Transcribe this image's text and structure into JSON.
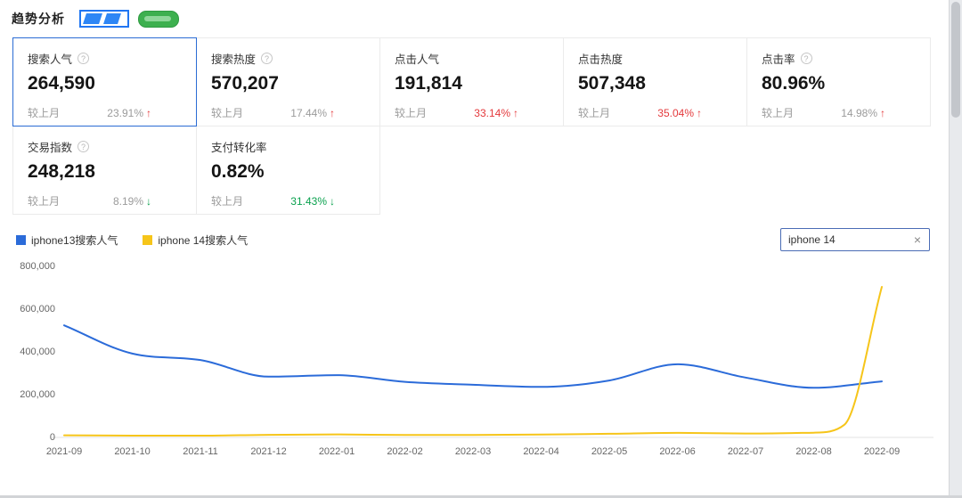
{
  "header": {
    "title": "趋势分析"
  },
  "icons": {
    "info": "?",
    "clear": "×"
  },
  "metrics": [
    {
      "label": "搜索人气",
      "has_info": true,
      "value": "264,590",
      "compare_label": "较上月",
      "pct": "23.91%",
      "arrow": "↑",
      "pct_color": "#9b9b9b",
      "arrow_color": "#e4393c",
      "selected": true
    },
    {
      "label": "搜索热度",
      "has_info": true,
      "value": "570,207",
      "compare_label": "较上月",
      "pct": "17.44%",
      "arrow": "↑",
      "pct_color": "#9b9b9b",
      "arrow_color": "#e4393c",
      "selected": false
    },
    {
      "label": "点击人气",
      "has_info": false,
      "value": "191,814",
      "compare_label": "较上月",
      "pct": "33.14%",
      "arrow": "↑",
      "pct_color": "#e4393c",
      "arrow_color": "#e4393c",
      "selected": false
    },
    {
      "label": "点击热度",
      "has_info": false,
      "value": "507,348",
      "compare_label": "较上月",
      "pct": "35.04%",
      "arrow": "↑",
      "pct_color": "#e4393c",
      "arrow_color": "#e4393c",
      "selected": false
    },
    {
      "label": "点击率",
      "has_info": true,
      "value": "80.96%",
      "compare_label": "较上月",
      "pct": "14.98%",
      "arrow": "↑",
      "pct_color": "#9b9b9b",
      "arrow_color": "#e4393c",
      "selected": false
    },
    {
      "label": "交易指数",
      "has_info": true,
      "value": "248,218",
      "compare_label": "较上月",
      "pct": "8.19%",
      "arrow": "↓",
      "pct_color": "#9b9b9b",
      "arrow_color": "#09a14e",
      "selected": false
    },
    {
      "label": "支付转化率",
      "has_info": false,
      "value": "0.82%",
      "compare_label": "较上月",
      "pct": "31.43%",
      "arrow": "↓",
      "pct_color": "#09a14e",
      "arrow_color": "#09a14e",
      "selected": false
    }
  ],
  "search": {
    "value": "iphone 14"
  },
  "chart_data": {
    "type": "line",
    "title": "",
    "xlabel": "",
    "ylabel": "",
    "x_labels": [
      "2021-09",
      "2021-10",
      "2021-11",
      "2021-12",
      "2022-01",
      "2022-02",
      "2022-03",
      "2022-04",
      "2022-05",
      "2022-06",
      "2022-07",
      "2022-08",
      "2022-09"
    ],
    "y_ticks": [
      0,
      200000,
      400000,
      600000,
      800000
    ],
    "ylim": [
      0,
      800000
    ],
    "grid": false,
    "legend_position": "top-left",
    "series": [
      {
        "name": "iphone13搜索人气",
        "color": "#2b6bd9",
        "points": [
          [
            0,
            520000
          ],
          [
            1,
            388000
          ],
          [
            2,
            358000
          ],
          [
            3,
            280000
          ],
          [
            4,
            287000
          ],
          [
            5,
            256000
          ],
          [
            6,
            242000
          ],
          [
            7,
            232000
          ],
          [
            8,
            262000
          ],
          [
            9,
            338000
          ],
          [
            10,
            276000
          ],
          [
            11,
            228000
          ],
          [
            12,
            258000
          ]
        ]
      },
      {
        "name": "iphone 14搜索人气",
        "color": "#f6c51a",
        "points": [
          [
            0,
            6000
          ],
          [
            1,
            4000
          ],
          [
            2,
            4000
          ],
          [
            3,
            8000
          ],
          [
            4,
            10000
          ],
          [
            5,
            7000
          ],
          [
            6,
            7000
          ],
          [
            7,
            9000
          ],
          [
            8,
            13000
          ],
          [
            9,
            17000
          ],
          [
            10,
            14000
          ],
          [
            11,
            18000
          ],
          [
            11.45,
            55000
          ],
          [
            12,
            700000
          ]
        ]
      }
    ]
  }
}
